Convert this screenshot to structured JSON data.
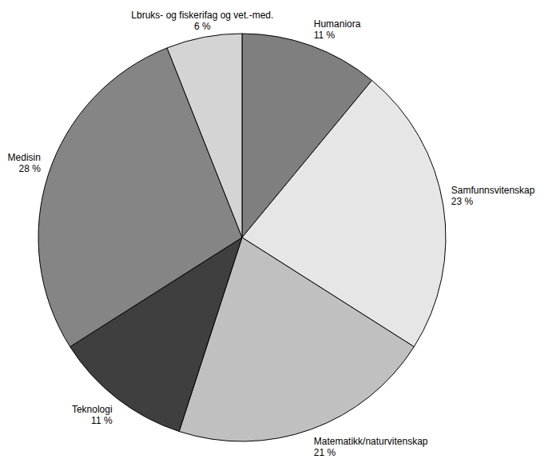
{
  "chart_data": {
    "type": "pie",
    "categories": [
      "Humaniora",
      "Samfunnsvitenskap",
      "Matematikk/naturvitenskap",
      "Teknologi",
      "Medisin",
      "Lbruks- og fiskerifag og vet.-med."
    ],
    "values": [
      11,
      23,
      21,
      11,
      28,
      6
    ],
    "value_labels": [
      "11 %",
      "23 %",
      "21 %",
      "11 %",
      "28 %",
      "6 %"
    ],
    "colors": [
      "#7f7f7f",
      "#e6e6e6",
      "#c0c0c0",
      "#3f3f3f",
      "#858585",
      "#d4d4d4"
    ],
    "data_labels": true
  }
}
